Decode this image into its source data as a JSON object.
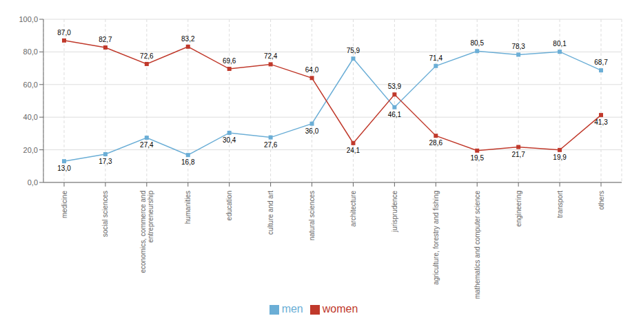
{
  "chart_data": {
    "type": "line",
    "categories": [
      "medicine",
      "social sciences",
      "economics, commerce and\nentrepreneurship",
      "humanities",
      "education",
      "culture and art",
      "natural sciences",
      "architecture",
      "jurisprudence",
      "agriculture, forestry and fishing",
      "mathematics and computer science",
      "engineering",
      "transport",
      "others"
    ],
    "series": [
      {
        "name": "men",
        "color": "#6baed6",
        "marker": "square",
        "values": [
          13.0,
          17.3,
          27.4,
          16.8,
          30.4,
          27.6,
          36.0,
          75.9,
          46.1,
          71.4,
          80.5,
          78.3,
          80.1,
          68.7
        ],
        "value_labels": [
          "13,0",
          "17,3",
          "27,4",
          "16,8",
          "30,4",
          "27,6",
          "36,0",
          "75,9",
          "46,1",
          "71,4",
          "80,5",
          "78,3",
          "80,1",
          "68,7"
        ]
      },
      {
        "name": "women",
        "color": "#c0392b",
        "marker": "square",
        "values": [
          87.0,
          82.7,
          72.6,
          83.2,
          69.6,
          72.4,
          64.0,
          24.1,
          53.9,
          28.6,
          19.5,
          21.7,
          19.9,
          41.3
        ],
        "value_labels": [
          "87,0",
          "82,7",
          "72,6",
          "83,2",
          "69,6",
          "72,4",
          "64,0",
          "24,1",
          "53,9",
          "28,6",
          "19,5",
          "21,7",
          "19,9",
          "41,3"
        ]
      }
    ],
    "ylim": [
      0,
      100
    ],
    "yticks": [
      {
        "value": 0,
        "label": "0,0"
      },
      {
        "value": 20,
        "label": "20,0"
      },
      {
        "value": 40,
        "label": "40,0"
      },
      {
        "value": 60,
        "label": "60,0"
      },
      {
        "value": 80,
        "label": "80,0"
      },
      {
        "value": 100,
        "label": "100,0"
      }
    ],
    "grid": true,
    "legend": "bottom",
    "data_labels": true
  }
}
